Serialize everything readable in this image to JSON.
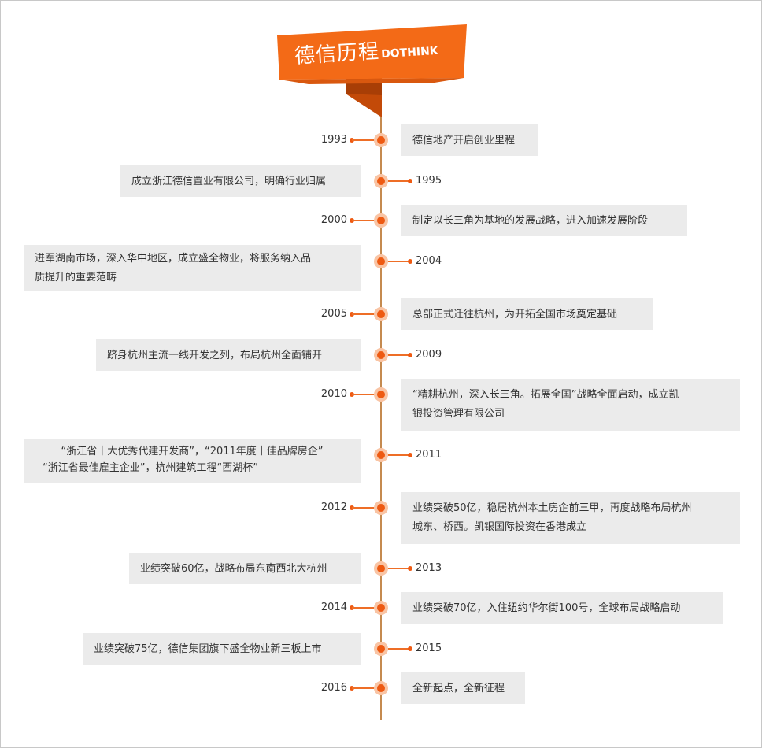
{
  "header": {
    "title_cn": "德信历程",
    "title_en": "DOTHINK",
    "banner_color": "#f36a17",
    "ribbon_color": "#c34a08"
  },
  "timeline": {
    "axis_color": "#c58a4f",
    "node_color": "#ee5a12",
    "box_color": "#ebebeb",
    "events": [
      {
        "year": "1993",
        "text": "德信地产开启创业里程",
        "side": "right"
      },
      {
        "year": "1995",
        "text": "成立浙江德信置业有限公司，明确行业归属",
        "side": "left"
      },
      {
        "year": "2000",
        "text": "制定以长三角为基地的发展战略，进入加速发展阶段",
        "side": "right"
      },
      {
        "year": "2004",
        "line1": "进军湖南市场，深入华中地区，成立盛全物业，将服务纳入品",
        "line2": "质提升的重要范畴",
        "side": "left"
      },
      {
        "year": "2005",
        "text": "总部正式迁往杭州，为开拓全国市场奠定基础",
        "side": "right"
      },
      {
        "year": "2009",
        "text": "跻身杭州主流一线开发之列，布局杭州全面铺开",
        "side": "left"
      },
      {
        "year": "2010",
        "line1": "“精耕杭州，深入长三角。拓展全国”战略全面启动，成立凯",
        "line2": "银投资管理有限公司",
        "side": "right"
      },
      {
        "year": "2011",
        "line1": "“浙江省十大优秀代建开发商”，“2011年度十佳品牌房企”",
        "line2": "“浙江省最佳雇主企业”，杭州建筑工程“西湖杯”",
        "side": "left"
      },
      {
        "year": "2012",
        "line1": "业绩突破50亿，稳居杭州本土房企前三甲，再度战略布局杭州",
        "line2": "城东、桥西。凯银国际投资在香港成立",
        "side": "right"
      },
      {
        "year": "2013",
        "text": "业绩突破60亿，战略布局东南西北大杭州",
        "side": "left"
      },
      {
        "year": "2014",
        "text": "业绩突破70亿，入住纽约华尔街100号，全球布局战略启动",
        "side": "right"
      },
      {
        "year": "2015",
        "text": "业绩突破75亿，德信集团旗下盛全物业新三板上市",
        "side": "left"
      },
      {
        "year": "2016",
        "text": "全新起点，全新征程",
        "side": "right"
      }
    ]
  }
}
